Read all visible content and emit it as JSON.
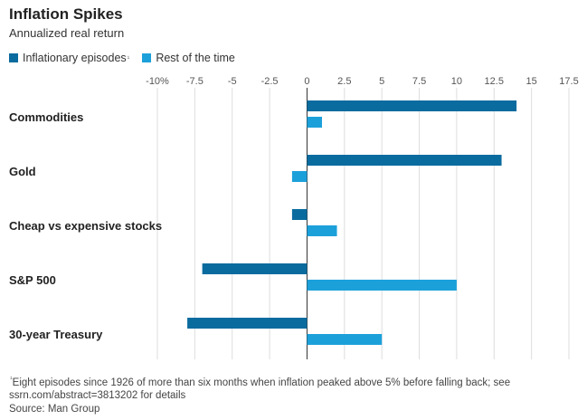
{
  "chart_data": {
    "type": "bar",
    "orientation": "horizontal",
    "title": "Inflation Spikes",
    "subtitle": "Annualized real return",
    "categories": [
      "Commodities",
      "Gold",
      "Cheap vs expensive stocks",
      "S&P 500",
      "30-year Treasury"
    ],
    "series": [
      {
        "name": "Inflationary episodes",
        "footnote_marker": "¹",
        "color": "#0a6b9e",
        "values": [
          14.0,
          13.0,
          -1.0,
          -7.0,
          -8.0
        ]
      },
      {
        "name": "Rest of the time",
        "color": "#1ca0da",
        "values": [
          1.0,
          -1.0,
          2.0,
          10.0,
          5.0
        ]
      }
    ],
    "xlim": [
      -10,
      17.5
    ],
    "xticks": [
      -10,
      -7.5,
      -5,
      -2.5,
      0,
      2.5,
      5,
      7.5,
      10,
      12.5,
      15,
      17.5
    ],
    "xtick_labels": [
      "-10%",
      "-7.5",
      "-5",
      "-2.5",
      "0",
      "2.5",
      "5",
      "7.5",
      "10",
      "12.5",
      "15",
      "17.5"
    ],
    "grid": true,
    "legend_position": "top-left"
  },
  "footnote": {
    "marker": "¹",
    "line1": "Eight episodes since 1926 of more than six months when inflation peaked above 5% before falling back; see",
    "line2": "ssrn.com/abstract=3813202 for details",
    "source": "Source: Man Group"
  }
}
